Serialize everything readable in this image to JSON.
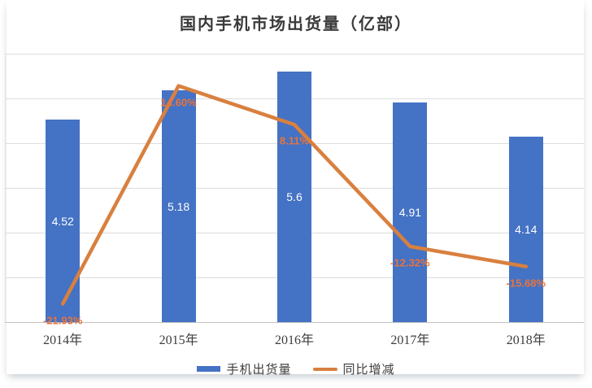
{
  "page": {
    "background": "#ffffff"
  },
  "chart_data": {
    "type": "bar",
    "combo": "bar+line",
    "title": "国内手机市场出货量（亿部）",
    "categories": [
      "2014年",
      "2015年",
      "2016年",
      "2017年",
      "2018年"
    ],
    "series": [
      {
        "name": "手机出货量",
        "type": "bar",
        "axis": "primary",
        "values": [
          4.52,
          5.18,
          5.6,
          4.91,
          4.14
        ],
        "labels": [
          "4.52",
          "5.18",
          "5.6",
          "4.91",
          "4.14"
        ],
        "color": "#4472C4",
        "label_color": "#ffffff"
      },
      {
        "name": "同比增减",
        "type": "line",
        "axis": "secondary",
        "values": [
          -21.93,
          14.6,
          8.11,
          -12.32,
          -15.68
        ],
        "labels": [
          "-21.93%",
          "14.60%",
          "8.11%",
          "-12.32%",
          "-15.68%"
        ],
        "color": "#D9803F",
        "label_color": "#E8743C"
      }
    ],
    "primary_axis": {
      "min": 0,
      "max": 6,
      "gridline_step": 1,
      "labels_visible": false
    },
    "secondary_axis": {
      "min": -25,
      "max": 20,
      "labels_visible": false
    },
    "grid": "horizontal",
    "legend_position": "bottom"
  }
}
